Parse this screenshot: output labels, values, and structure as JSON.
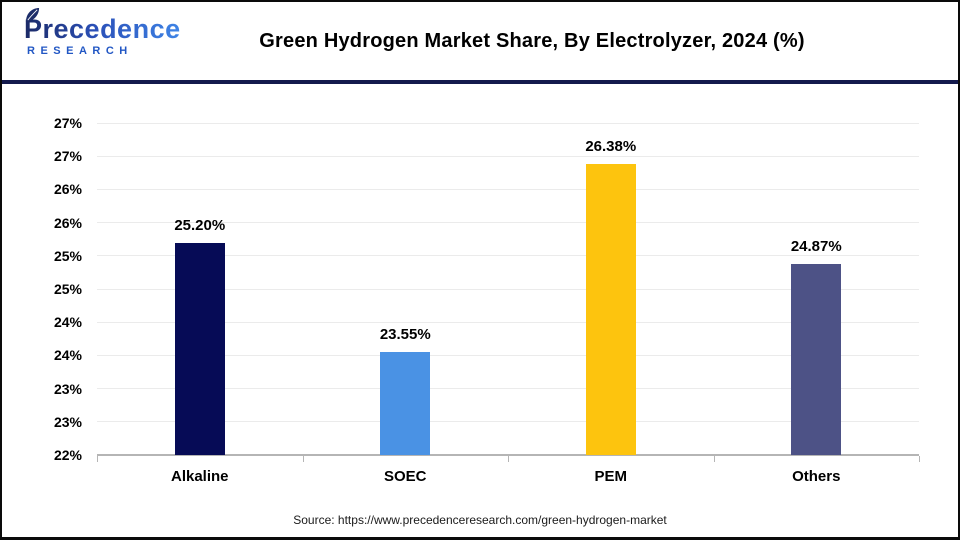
{
  "logo": {
    "brand": "Precedence",
    "sub": "RESEARCH"
  },
  "source": {
    "text": "Source: https://www.precedenceresearch.com/green-hydrogen-market"
  },
  "chart_data": {
    "type": "bar",
    "title": "Green Hydrogen Market Share, By Electrolyzer, 2024 (%)",
    "categories": [
      "Alkaline",
      "SOEC",
      "PEM",
      "Others"
    ],
    "values": [
      25.2,
      23.55,
      26.38,
      24.87
    ],
    "value_labels": [
      "25.20%",
      "23.55%",
      "26.38%",
      "24.87%"
    ],
    "bar_colors": [
      "#060b56",
      "#4a92e4",
      "#fdc40e",
      "#4d5286"
    ],
    "xlabel": "",
    "ylabel": "",
    "ylim": [
      22,
      27
    ],
    "ytick_step": 0.5,
    "ytick_labels": [
      "27%",
      "27%",
      "26%",
      "26%",
      "25%",
      "25%",
      "24%",
      "24%",
      "23%",
      "23%",
      "22%"
    ],
    "grid": true,
    "legend_position": "none",
    "colors": {
      "grid": "#ebebeb",
      "axis": "#b5b5b5",
      "label_text": "#000000"
    }
  },
  "theme": {
    "divider_color": "#141a4d",
    "leaf_color": "#1d2d69"
  }
}
